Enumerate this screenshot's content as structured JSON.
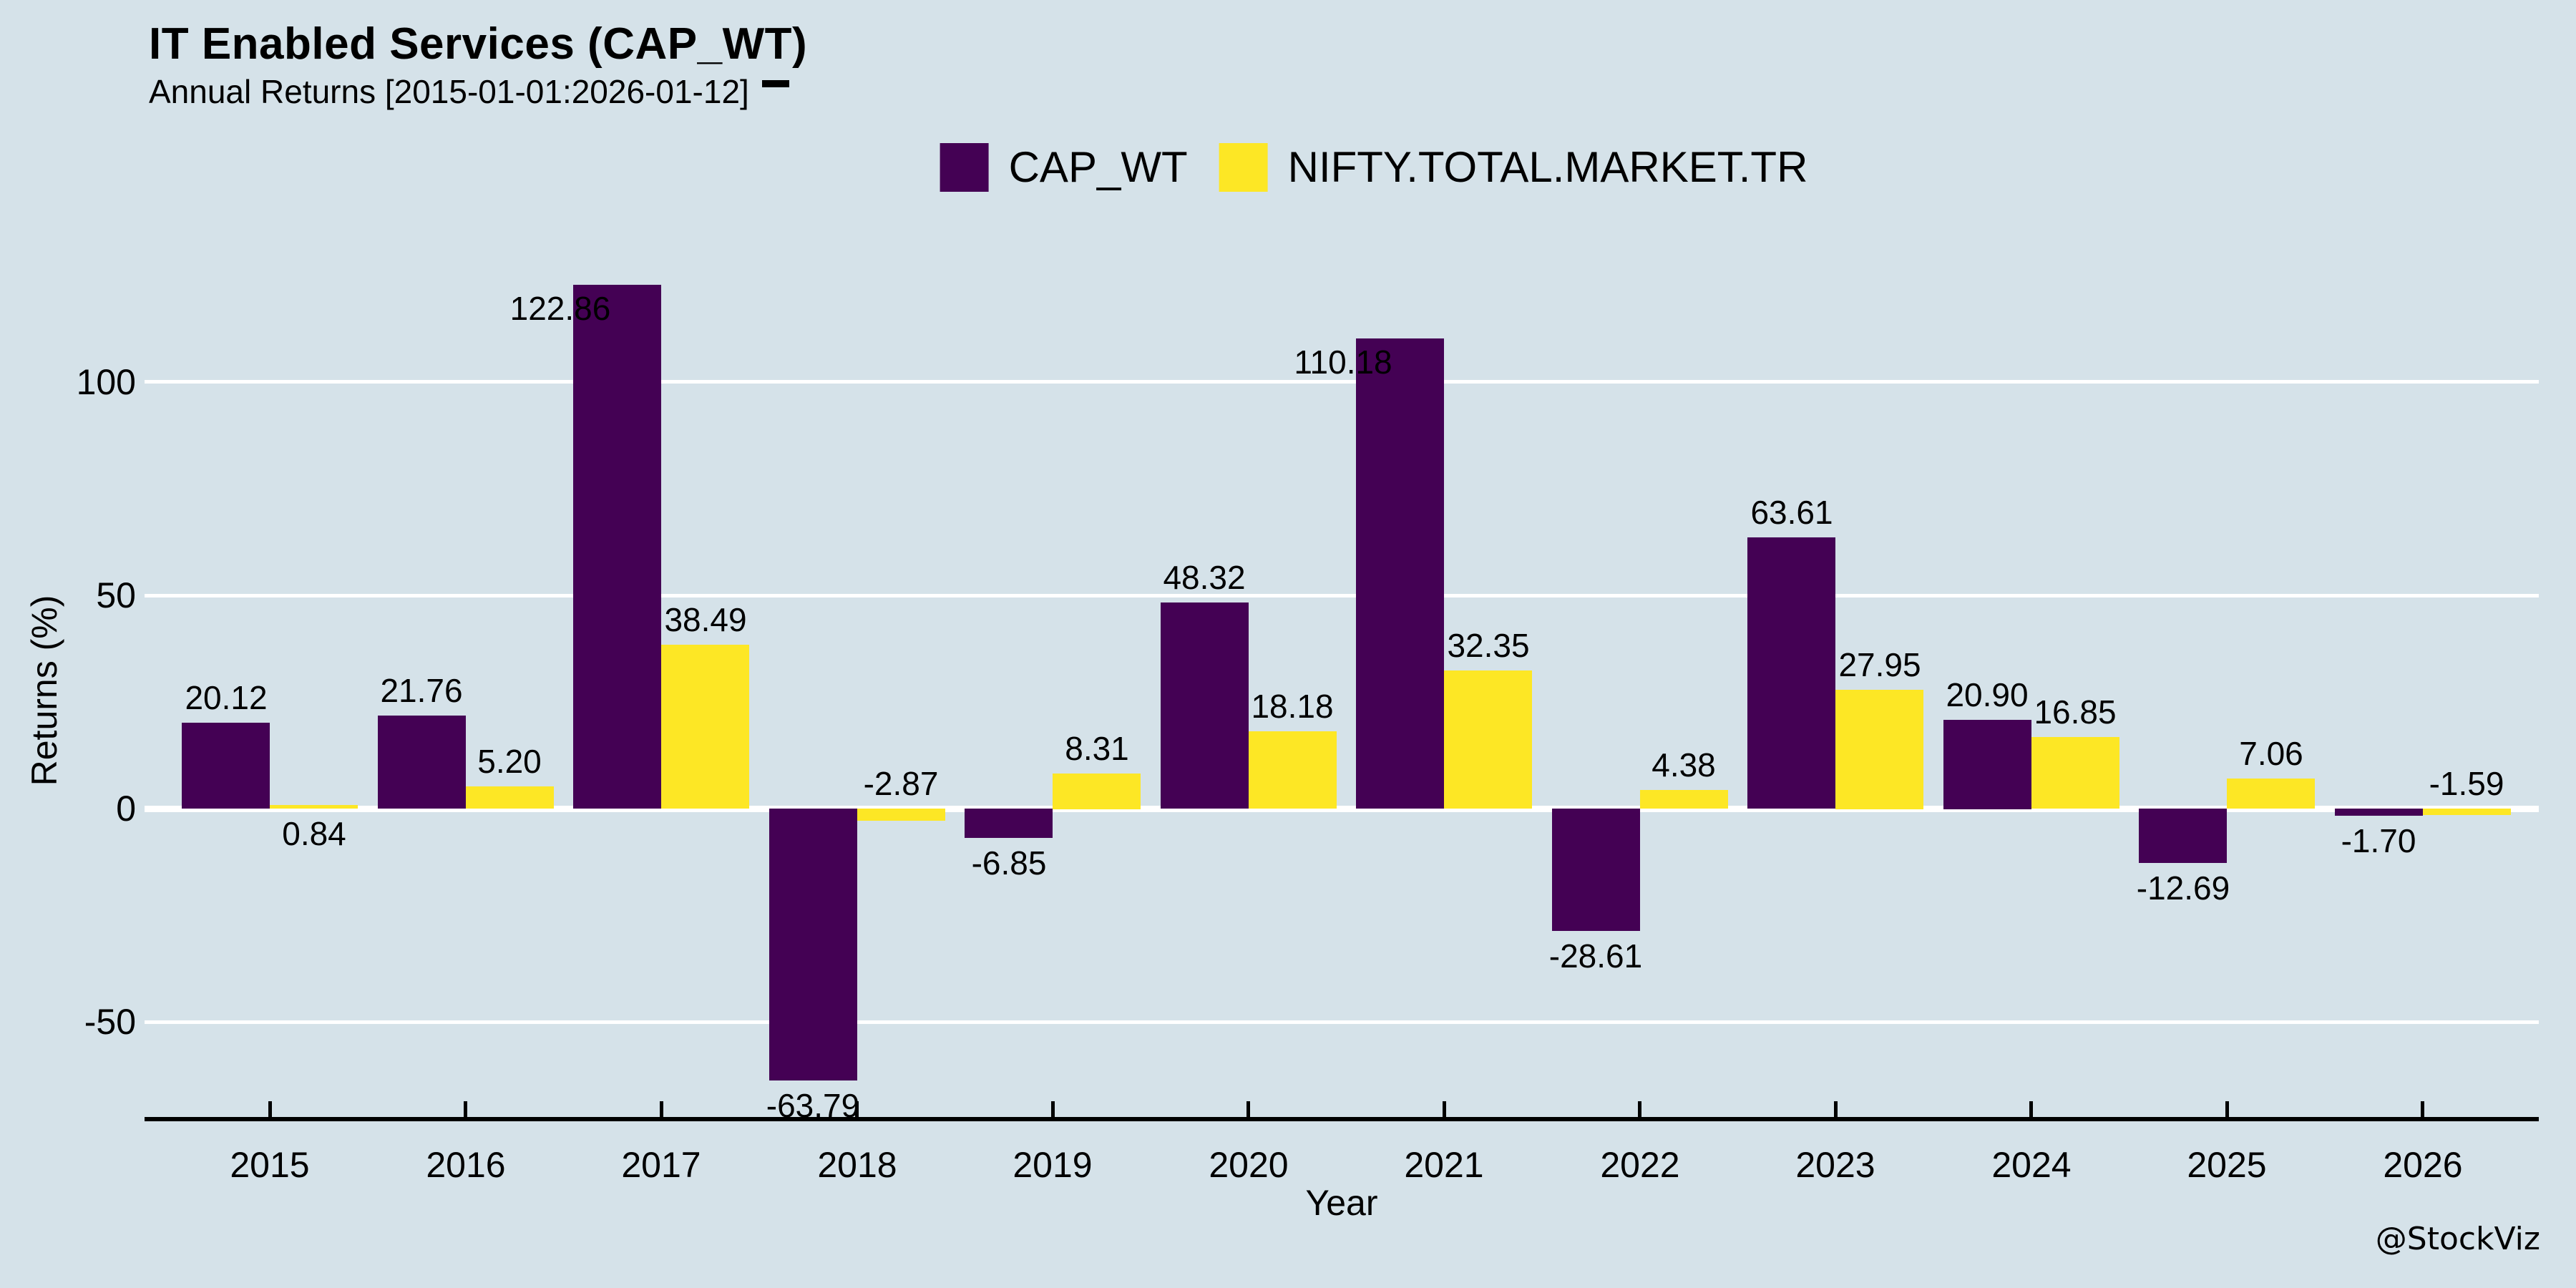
{
  "title": "IT Enabled Services (CAP_WT)",
  "subtitle": "Annual Returns [2015-01-01:2026-01-12]",
  "watermark": "@StockViz",
  "colors": {
    "background": "#D5E2E9",
    "gridline": "#FFFFFF",
    "axis": "#000000",
    "text": "#000000",
    "capwt_bar": "#440154",
    "nifty_bar": "#FDE725"
  },
  "legend": {
    "items": [
      {
        "label": "CAP_WT",
        "color": "#440154"
      },
      {
        "label": "NIFTY.TOTAL.MARKET.TR",
        "color": "#FDE725"
      }
    ]
  },
  "chart_data": {
    "type": "bar",
    "title": "IT Enabled Services (CAP_WT)",
    "subtitle": "Annual Returns [2015-01-01:2026-01-12]",
    "xlabel": "Year",
    "ylabel": "Returns (%)",
    "categories": [
      "2015",
      "2016",
      "2017",
      "2018",
      "2019",
      "2020",
      "2021",
      "2022",
      "2023",
      "2024",
      "2025",
      "2026"
    ],
    "series": [
      {
        "name": "CAP_WT",
        "key": "capwt",
        "color": "#440154",
        "values": [
          20.12,
          21.76,
          122.86,
          -63.79,
          -6.85,
          48.32,
          110.18,
          -28.61,
          63.61,
          20.9,
          -12.69,
          -1.7
        ],
        "labels": [
          "20.12",
          "21.76",
          "122.86",
          "-63.79",
          "-6.85",
          "48.32",
          "110.18",
          "-28.61",
          "63.61",
          "20.90",
          "-12.69",
          "-1.70"
        ],
        "label_side": [
          "above",
          "above",
          "top-inside",
          "below",
          "below",
          "above",
          "top-inside",
          "below",
          "above",
          "above",
          "below",
          "below"
        ]
      },
      {
        "name": "NIFTY.TOTAL.MARKET.TR",
        "key": "nifty",
        "color": "#FDE725",
        "values": [
          0.84,
          5.2,
          38.49,
          -2.87,
          8.31,
          18.18,
          32.35,
          4.38,
          27.95,
          16.85,
          7.06,
          -1.59
        ],
        "labels": [
          "0.84",
          "5.20",
          "38.49",
          "-2.87",
          "8.31",
          "18.18",
          "32.35",
          "4.38",
          "27.95",
          "16.85",
          "7.06",
          "-1.59"
        ],
        "label_side": [
          "below",
          "above",
          "above",
          "above",
          "above",
          "above",
          "above",
          "above",
          "above",
          "above",
          "above",
          "above"
        ]
      }
    ],
    "yticks": [
      -50,
      0,
      50,
      100
    ],
    "ylim": [
      -73.1,
      132.2
    ],
    "grid": "horizontal-major-white",
    "legend_position": "top-center",
    "bar_value_labels": true
  }
}
